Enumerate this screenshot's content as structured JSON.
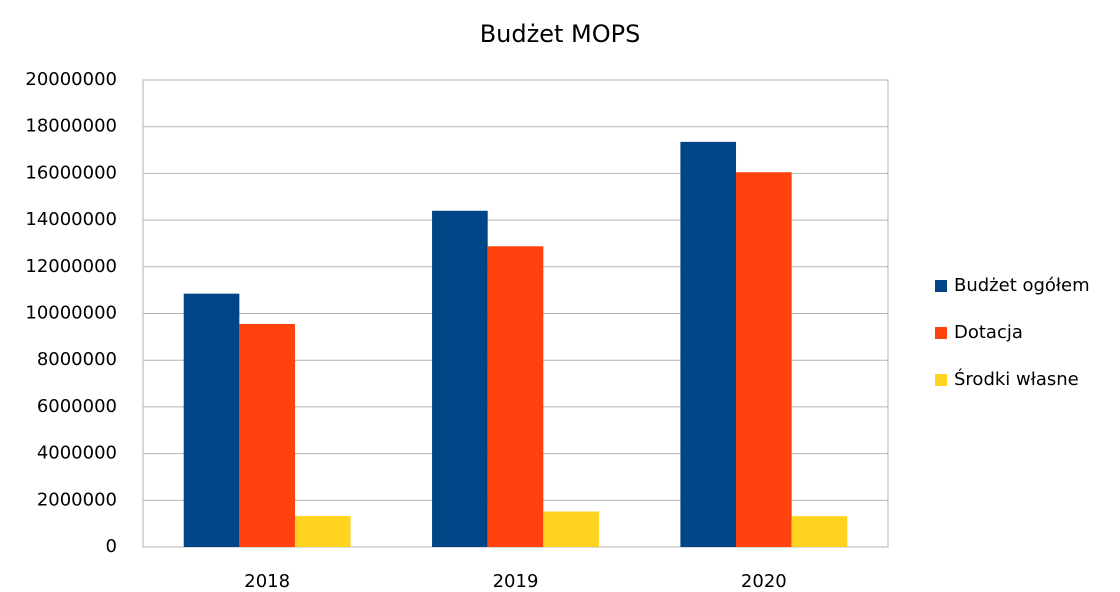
{
  "chart_data": {
    "type": "bar",
    "title": "Budżet MOPS",
    "categories": [
      "2018",
      "2019",
      "2020"
    ],
    "series": [
      {
        "name": "Budżet ogółem",
        "color": "#004586",
        "values": [
          10850000,
          14400000,
          17350000
        ]
      },
      {
        "name": "Dotacja",
        "color": "#ff420e",
        "values": [
          9550000,
          12880000,
          16050000
        ]
      },
      {
        "name": "Środki własne",
        "color": "#ffd320",
        "values": [
          1330000,
          1520000,
          1320000
        ]
      }
    ],
    "ylim": [
      0,
      20000000
    ],
    "yticks": [
      0,
      2000000,
      4000000,
      6000000,
      8000000,
      10000000,
      12000000,
      14000000,
      16000000,
      18000000,
      20000000
    ],
    "grid": true,
    "legend": "right"
  }
}
